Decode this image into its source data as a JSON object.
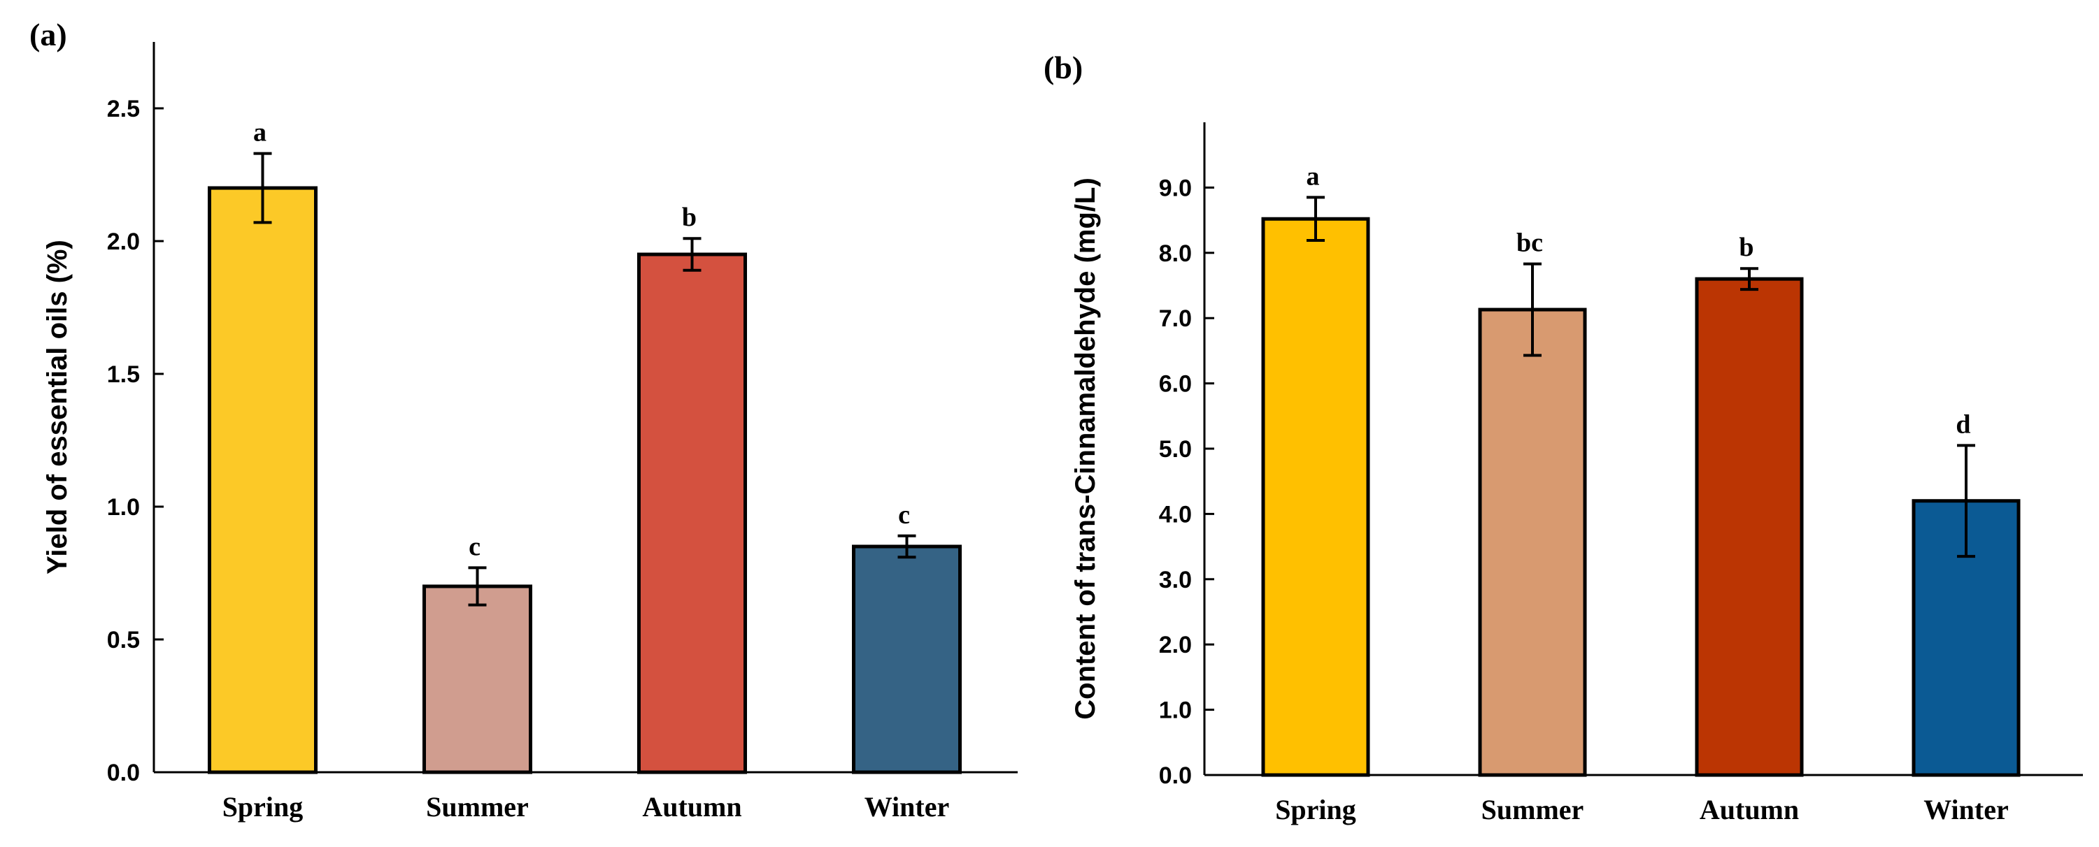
{
  "chart_data": [
    {
      "type": "bar",
      "panel_label": "(a)",
      "title": "",
      "xlabel": "",
      "ylabel": "Yield of essential oils (%)",
      "ylim": [
        0,
        2.75
      ],
      "yticks": [
        0.0,
        0.5,
        1.0,
        1.5,
        2.0,
        2.5
      ],
      "ytick_labels": [
        "0.0",
        "0.5",
        "1.0",
        "1.5",
        "2.0",
        "2.5"
      ],
      "categories": [
        "Spring",
        "Summer",
        "Autumn",
        "Winter"
      ],
      "values": [
        2.2,
        0.7,
        1.95,
        0.85
      ],
      "errors": [
        0.13,
        0.07,
        0.06,
        0.04
      ],
      "significance": [
        "a",
        "c",
        "b",
        "c"
      ],
      "colors": [
        "#FCC927",
        "#D09D8F",
        "#D4513F",
        "#356385"
      ]
    },
    {
      "type": "bar",
      "panel_label": "(b)",
      "title": "",
      "xlabel": "",
      "ylabel": "Content of trans-Cinnamaldehyde (mg/L)",
      "ylim": [
        0,
        10
      ],
      "yticks": [
        0,
        1,
        2,
        3,
        4,
        5,
        6,
        7,
        8,
        9
      ],
      "ytick_labels": [
        "0.0",
        "1.0",
        "2.0",
        "3.0",
        "4.0",
        "5.0",
        "6.0",
        "7.0",
        "8.0",
        "9.0"
      ],
      "categories": [
        "Spring",
        "Summer",
        "Autumn",
        "Winter"
      ],
      "values": [
        8.52,
        7.13,
        7.6,
        4.2
      ],
      "errors": [
        0.33,
        0.7,
        0.16,
        0.85
      ],
      "significance": [
        "a",
        "bc",
        "b",
        "d"
      ],
      "colors": [
        "#FFC000",
        "#D89A70",
        "#BB3503",
        "#0B5A94"
      ]
    }
  ]
}
